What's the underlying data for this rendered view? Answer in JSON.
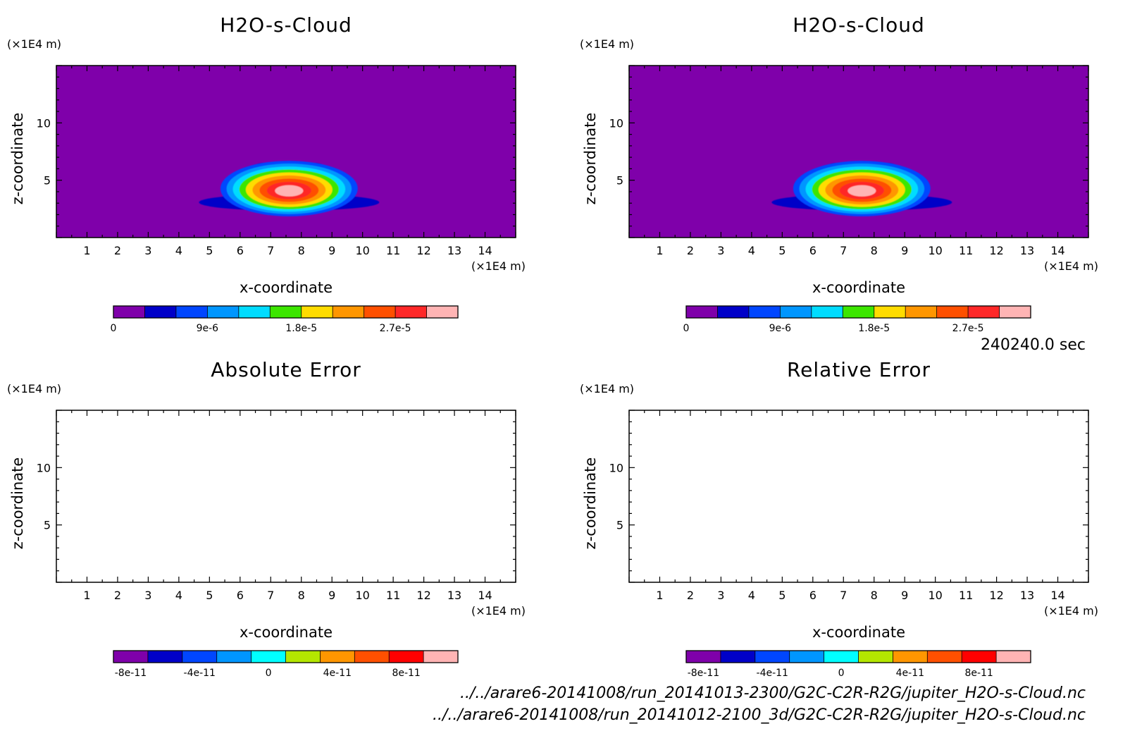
{
  "chart_data": [
    {
      "type": "heatmap",
      "title": "H2O-s-Cloud",
      "xlabel": "x-coordinate",
      "ylabel": "z-coordinate",
      "x_unit": "(×1E4 m)",
      "y_unit": "(×1E4 m)",
      "xlim": [
        0,
        15
      ],
      "ylim": [
        0,
        15
      ],
      "x_ticks": [
        "1",
        "2",
        "3",
        "4",
        "5",
        "6",
        "7",
        "8",
        "9",
        "10",
        "11",
        "12",
        "13",
        "14"
      ],
      "y_ticks": [
        "5",
        "10"
      ],
      "blob": {
        "center_x": 7.6,
        "center_z": 4.3,
        "peak": 3.3e-05
      },
      "colorbar": {
        "colors": [
          "#7f00aa",
          "#0000c8",
          "#0046ff",
          "#0096ff",
          "#00dcff",
          "#3ce600",
          "#ffdc00",
          "#ff9600",
          "#ff5000",
          "#ff2828",
          "#ffb4b4"
        ],
        "tick_labels": [
          "0",
          "9e-6",
          "1.8e-5",
          "2.7e-5"
        ],
        "tick_index": [
          0,
          3,
          6,
          9
        ]
      }
    },
    {
      "type": "heatmap",
      "title": "H2O-s-Cloud",
      "xlabel": "x-coordinate",
      "ylabel": "z-coordinate",
      "x_unit": "(×1E4 m)",
      "y_unit": "(×1E4 m)",
      "xlim": [
        0,
        15
      ],
      "ylim": [
        0,
        15
      ],
      "x_ticks": [
        "1",
        "2",
        "3",
        "4",
        "5",
        "6",
        "7",
        "8",
        "9",
        "10",
        "11",
        "12",
        "13",
        "14"
      ],
      "y_ticks": [
        "5",
        "10"
      ],
      "blob": {
        "center_x": 7.6,
        "center_z": 4.3,
        "peak": 3.3e-05
      },
      "colorbar": {
        "colors": [
          "#7f00aa",
          "#0000c8",
          "#0046ff",
          "#0096ff",
          "#00dcff",
          "#3ce600",
          "#ffdc00",
          "#ff9600",
          "#ff5000",
          "#ff2828",
          "#ffb4b4"
        ],
        "tick_labels": [
          "0",
          "9e-6",
          "1.8e-5",
          "2.7e-5"
        ],
        "tick_index": [
          0,
          3,
          6,
          9
        ]
      }
    },
    {
      "type": "heatmap",
      "title": "Absolute Error",
      "xlabel": "x-coordinate",
      "ylabel": "z-coordinate",
      "x_unit": "(×1E4 m)",
      "y_unit": "(×1E4 m)",
      "xlim": [
        0,
        15
      ],
      "ylim": [
        0,
        15
      ],
      "x_ticks": [
        "1",
        "2",
        "3",
        "4",
        "5",
        "6",
        "7",
        "8",
        "9",
        "10",
        "11",
        "12",
        "13",
        "14"
      ],
      "y_ticks": [
        "5",
        "10"
      ],
      "blob": null,
      "colorbar": {
        "colors": [
          "#7f00aa",
          "#0000c8",
          "#0046ff",
          "#0096ff",
          "#00ffff",
          "#b4e600",
          "#ff9600",
          "#ff5000",
          "#ff0000",
          "#ffb4b4"
        ],
        "tick_labels": [
          "-8e-11",
          "-4e-11",
          "0",
          "4e-11",
          "8e-11"
        ],
        "tick_index": [
          0.5,
          2.5,
          4.5,
          6.5,
          8.5
        ]
      }
    },
    {
      "type": "heatmap",
      "title": "Relative Error",
      "xlabel": "x-coordinate",
      "ylabel": "z-coordinate",
      "x_unit": "(×1E4 m)",
      "y_unit": "(×1E4 m)",
      "xlim": [
        0,
        15
      ],
      "ylim": [
        0,
        15
      ],
      "x_ticks": [
        "1",
        "2",
        "3",
        "4",
        "5",
        "6",
        "7",
        "8",
        "9",
        "10",
        "11",
        "12",
        "13",
        "14"
      ],
      "y_ticks": [
        "5",
        "10"
      ],
      "blob": null,
      "colorbar": {
        "colors": [
          "#7f00aa",
          "#0000c8",
          "#0046ff",
          "#0096ff",
          "#00ffff",
          "#b4e600",
          "#ff9600",
          "#ff5000",
          "#ff0000",
          "#ffb4b4"
        ],
        "tick_labels": [
          "-8e-11",
          "-4e-11",
          "0",
          "4e-11",
          "8e-11"
        ],
        "tick_index": [
          0.5,
          2.5,
          4.5,
          6.5,
          8.5
        ]
      }
    }
  ],
  "time_label": "240240.0 sec",
  "file_paths": [
    "../../arare6-20141008/run_20141013-2300/G2C-C2R-R2G/jupiter_H2O-s-Cloud.nc",
    "../../arare6-20141008/run_20141012-2100_3d/G2C-C2R-R2G/jupiter_H2O-s-Cloud.nc"
  ],
  "colors": {
    "background_field": "#7f00aa",
    "frame": "#000000"
  }
}
